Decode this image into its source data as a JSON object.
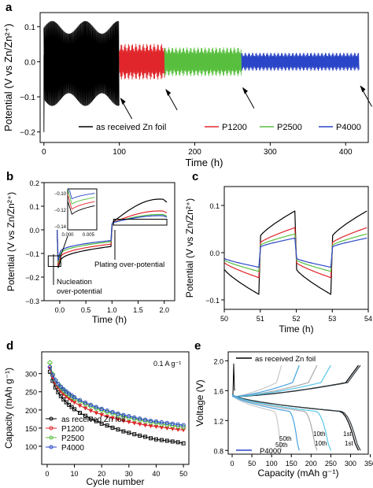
{
  "colors": {
    "black": "#000000",
    "red": "#e0262b",
    "green": "#58bf3e",
    "blue": "#2b45c8",
    "panel_e_light": "#a9a9a9",
    "panel_e_blue": "#4aa3e0",
    "panel_e_cyan": "#58c7e8",
    "panel_e_dark": "#2f3a40"
  },
  "chart_data": [
    {
      "id": "a",
      "type": "line",
      "panel_label": "a",
      "xlabel": "Time (h)",
      "ylabel": "Potential (V vs Zn/Zn²⁺)",
      "xlim": [
        -5,
        430
      ],
      "ylim": [
        -0.23,
        0.14
      ],
      "xticks": [
        "0",
        "100",
        "200",
        "300",
        "400"
      ],
      "yticks": [
        "-0.2",
        "-0.1",
        "0.0",
        "0.1"
      ],
      "legend": [
        "as received Zn foil",
        "P1200",
        "P2500",
        "P4000"
      ],
      "legend_position": "bottom-center",
      "series": [
        {
          "name": "as received Zn foil",
          "color": "#000000",
          "x_start": 0,
          "x_end": 100,
          "amplitude": 0.12
        },
        {
          "name": "P1200",
          "color": "#e0262b",
          "x_start": 100,
          "x_end": 160,
          "amplitude": 0.05
        },
        {
          "name": "P2500",
          "color": "#58bf3e",
          "x_start": 160,
          "x_end": 262,
          "amplitude": 0.04
        },
        {
          "name": "P4000",
          "color": "#2b45c8",
          "x_start": 262,
          "x_end": 418,
          "amplitude": 0.025
        }
      ],
      "annotations": [
        "arrow at ~100 h",
        "arrow at ~160 h",
        "arrow at ~262 h",
        "arrow at ~418 h"
      ]
    },
    {
      "id": "b",
      "type": "line",
      "panel_label": "b",
      "xlabel": "Time (h)",
      "ylabel": "Potential (V vs Zn/Zn²⁺)",
      "xlim": [
        -0.3,
        2.2
      ],
      "ylim": [
        -0.3,
        0.2
      ],
      "xticks": [
        "0.0",
        "0.5",
        "1.0",
        "1.5",
        "2.0"
      ],
      "yticks": [
        "-0.3",
        "-0.2",
        "-0.1",
        "0.0",
        "0.1",
        "0.2"
      ],
      "annotations": [
        "Nucleation over-potential",
        "Plating over-potential"
      ],
      "inset": {
        "xticks": [
          "0.000",
          "0.005"
        ],
        "yticks": [
          "-0.10",
          "-0.12",
          "-0.14"
        ]
      },
      "series": [
        {
          "name": "as received Zn foil",
          "color": "#000000",
          "plating_overpotential": -0.14,
          "stripping_max": 0.13
        },
        {
          "name": "P1200",
          "color": "#e0262b",
          "plating_overpotential": -0.125,
          "stripping_max": 0.08
        },
        {
          "name": "P2500",
          "color": "#58bf3e",
          "plating_overpotential": -0.11,
          "stripping_max": 0.065
        },
        {
          "name": "P4000",
          "color": "#2b45c8",
          "plating_overpotential": -0.1,
          "stripping_max": 0.06
        }
      ]
    },
    {
      "id": "c",
      "type": "line",
      "panel_label": "c",
      "xlabel": "Time (h)",
      "ylabel": "Potential (V vs Zn/Zn²⁺)",
      "xlim": [
        50,
        54
      ],
      "ylim": [
        -0.12,
        0.14
      ],
      "xticks": [
        "50",
        "51",
        "52",
        "53",
        "54"
      ],
      "yticks": [
        "-0.1",
        "0.0",
        "0.1"
      ],
      "series": [
        {
          "name": "as received Zn foil",
          "color": "#000000",
          "amplitude": 0.1
        },
        {
          "name": "P1200",
          "color": "#e0262b",
          "amplitude": 0.06
        },
        {
          "name": "P2500",
          "color": "#58bf3e",
          "amplitude": 0.045
        },
        {
          "name": "P4000",
          "color": "#2b45c8",
          "amplitude": 0.035
        }
      ]
    },
    {
      "id": "d",
      "type": "line",
      "panel_label": "d",
      "xlabel": "Cycle number",
      "ylabel": "Capacity (mAh g⁻¹)",
      "xlim": [
        -2,
        52
      ],
      "ylim": [
        50,
        360
      ],
      "xticks": [
        "0",
        "10",
        "20",
        "30",
        "40",
        "50"
      ],
      "yticks": [
        "100",
        "150",
        "200",
        "250",
        "300"
      ],
      "annotation": "0.1 A g⁻¹",
      "legend": [
        "as received Zn foil",
        "P1200",
        "P2500",
        "P4000"
      ],
      "legend_position": "bottom-left",
      "x": [
        1,
        2,
        3,
        4,
        5,
        6,
        7,
        8,
        9,
        10,
        12,
        14,
        16,
        18,
        20,
        22,
        24,
        26,
        28,
        30,
        32,
        34,
        36,
        38,
        40,
        42,
        44,
        46,
        48,
        50
      ],
      "series": [
        {
          "name": "as received Zn foil",
          "color": "#000000",
          "marker": "square",
          "values": [
            305,
            280,
            262,
            249,
            238,
            229,
            221,
            214,
            208,
            202,
            192,
            184,
            176,
            169,
            162,
            157,
            151,
            146,
            141,
            137,
            133,
            129,
            126,
            122,
            119,
            117,
            115,
            113,
            111,
            108
          ]
        },
        {
          "name": "P1200",
          "color": "#e0262b",
          "marker": "triangle-down",
          "values": [
            315,
            290,
            273,
            262,
            252,
            244,
            237,
            231,
            226,
            221,
            212,
            205,
            198,
            192,
            187,
            182,
            178,
            174,
            170,
            167,
            164,
            161,
            158,
            156,
            154,
            152,
            150,
            148,
            146,
            145
          ]
        },
        {
          "name": "P2500",
          "color": "#58bf3e",
          "marker": "diamond",
          "values": [
            330,
            298,
            282,
            271,
            262,
            254,
            247,
            241,
            236,
            231,
            223,
            216,
            210,
            204,
            199,
            194,
            190,
            186,
            182,
            178,
            175,
            172,
            169,
            166,
            164,
            161,
            159,
            157,
            155,
            153
          ]
        },
        {
          "name": "P4000",
          "color": "#2b45c8",
          "marker": "circle",
          "values": [
            318,
            296,
            282,
            272,
            264,
            257,
            251,
            245,
            240,
            235,
            227,
            220,
            214,
            208,
            203,
            198,
            194,
            190,
            186,
            183,
            179,
            176,
            173,
            170,
            168,
            166,
            164,
            162,
            160,
            158
          ]
        }
      ]
    },
    {
      "id": "e",
      "type": "line",
      "panel_label": "e",
      "xlabel": "Capacity (mAh g⁻¹)",
      "ylabel": "Voltage (V)",
      "xlim": [
        -10,
        345
      ],
      "ylim": [
        0.75,
        2.12
      ],
      "xticks": [
        "0",
        "50",
        "100",
        "150",
        "200",
        "250",
        "300",
        "350"
      ],
      "yticks": [
        "0.8",
        "1.2",
        "1.6",
        "2.0"
      ],
      "legend": [
        "as received Zn foil",
        "P4000"
      ],
      "curve_labels": [
        "50th",
        "50th",
        "10th",
        "10th",
        "1st",
        "1st"
      ],
      "series": [
        {
          "name": "as received Zn foil 1st",
          "color": "#000000",
          "capacity": 320
        },
        {
          "name": "P4000 1st",
          "color": "#2f3a40",
          "capacity": 325
        },
        {
          "name": "as received Zn foil 10th",
          "color": "#a9a9a9",
          "capacity": 215
        },
        {
          "name": "P4000 10th",
          "color": "#58c7e8",
          "capacity": 250
        },
        {
          "name": "as received Zn foil 50th",
          "color": "#c9c9c9",
          "capacity": 125
        },
        {
          "name": "P4000 50th",
          "color": "#4aa3e0",
          "capacity": 170
        }
      ]
    }
  ]
}
